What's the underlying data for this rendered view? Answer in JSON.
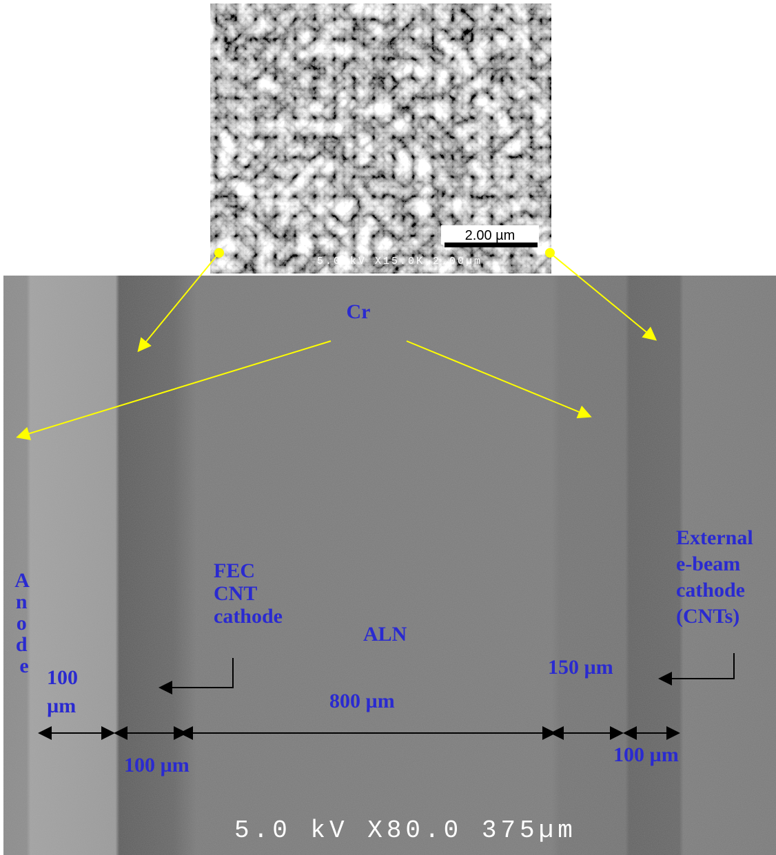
{
  "top_image": {
    "scale_bar_label": "2.00 µm",
    "caption": "5.0 kV X15.0K 2.00µm"
  },
  "main_image": {
    "caption": "5.0 kV X80.0 375µm"
  },
  "labels": {
    "cr": "Cr",
    "anode": [
      "A",
      "n",
      "o",
      "d",
      "e"
    ],
    "fec": [
      "FEC",
      "CNT",
      "cathode"
    ],
    "aln": "ALN",
    "external": [
      "External",
      "e-beam",
      "cathode",
      "(CNTs)"
    ]
  },
  "dimensions": {
    "anode_width": [
      "100",
      "µm"
    ],
    "fec_width": "100 µm",
    "aln_width": "800 µm",
    "gap_width": "150 µm",
    "external_width": "100 µm"
  }
}
